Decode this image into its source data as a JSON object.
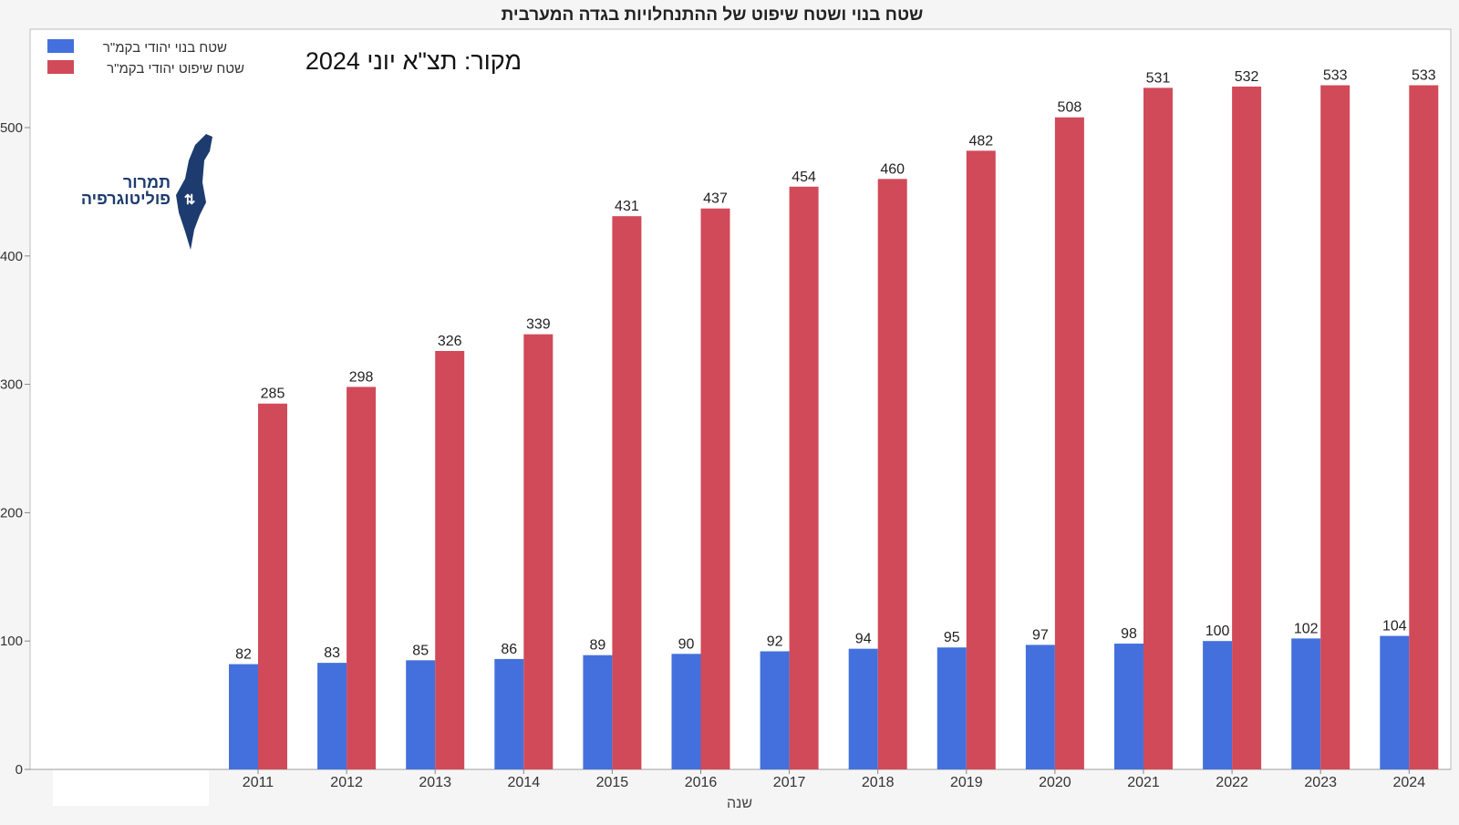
{
  "chart_data": {
    "type": "bar",
    "title": "שטח בנוי ושטח שיפוט של ההתנחלויות בגדה המערבית",
    "source_note": "מקור: תצ\"א יוני 2024",
    "logo_text": [
      "תמרור",
      "פוליטוגרפיה"
    ],
    "xlabel": "שנה",
    "ylabel": "",
    "ylim": [
      0,
      570
    ],
    "y_ticks": [
      "0",
      "100",
      "200",
      "300",
      "400",
      "500"
    ],
    "categories": [
      "2011",
      "2012",
      "2013",
      "2014",
      "2015",
      "2016",
      "2017",
      "2018",
      "2019",
      "2020",
      "2021",
      "2022",
      "2023",
      "2024"
    ],
    "series": [
      {
        "name": "שטח בנוי יהודי בקמ\"ר",
        "color": "#4370dc",
        "values": [
          82,
          83,
          85,
          86,
          89,
          90,
          92,
          94,
          95,
          97,
          98,
          100,
          102,
          104
        ]
      },
      {
        "name": "שטח שיפוט יהודי בקמ\"ר",
        "color": "#d14a59",
        "values": [
          285,
          298,
          326,
          339,
          431,
          437,
          454,
          460,
          482,
          508,
          531,
          532,
          533,
          533
        ]
      }
    ],
    "legend_position": "top-left",
    "grid": false,
    "data_labels": true
  }
}
